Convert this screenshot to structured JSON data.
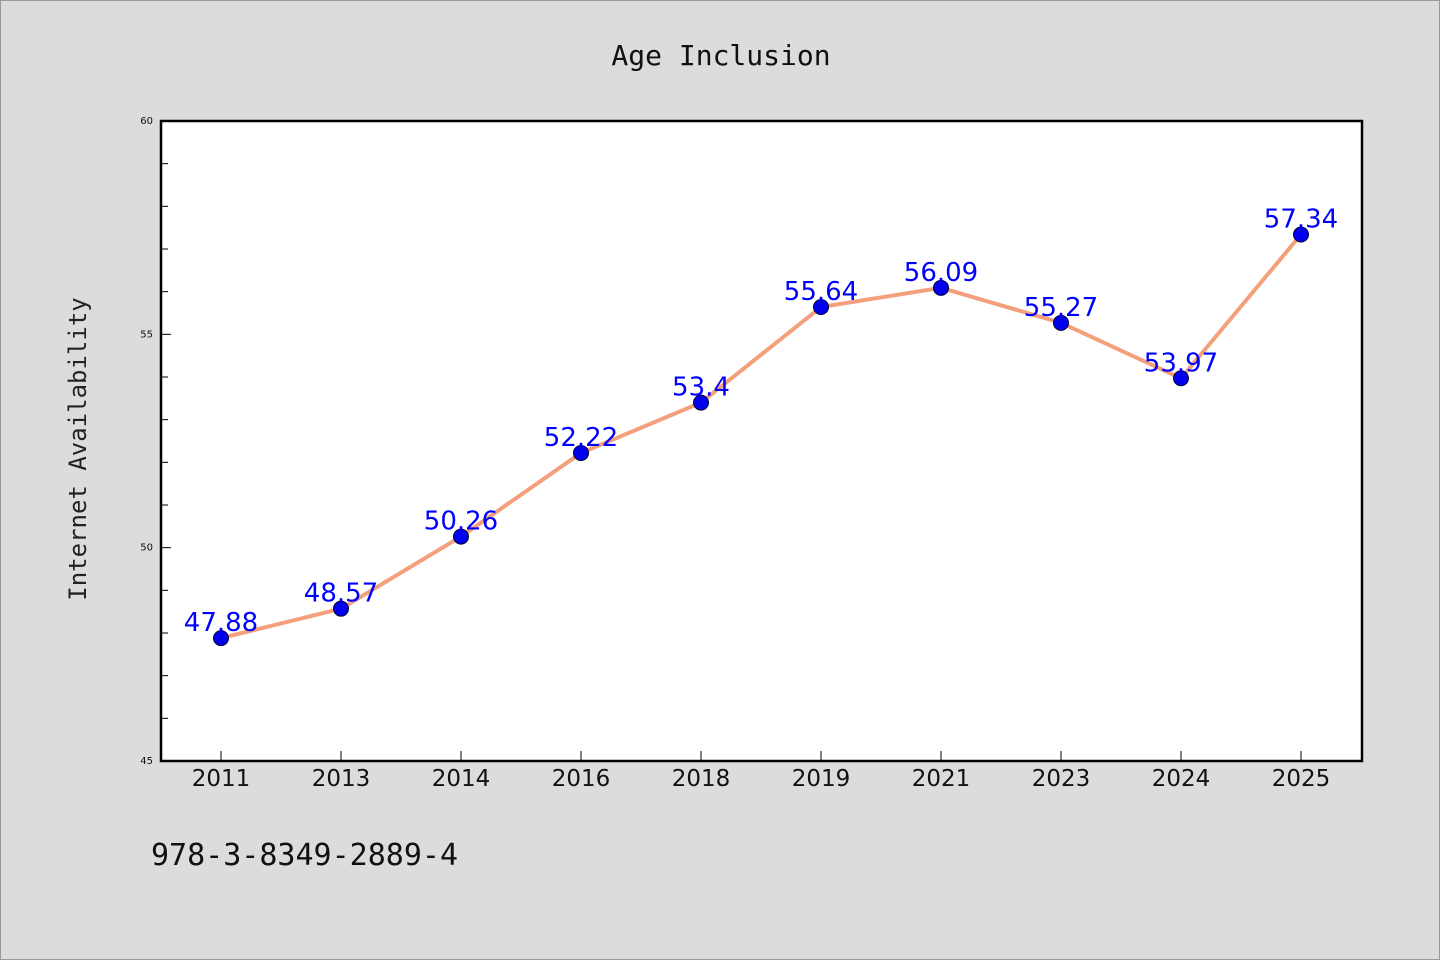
{
  "chart_data": {
    "type": "line",
    "title": "Age Inclusion",
    "xlabel": "",
    "ylabel": "Internet Availability",
    "categories": [
      "2011",
      "2013",
      "2014",
      "2016",
      "2018",
      "2019",
      "2021",
      "2023",
      "2024",
      "2025"
    ],
    "series": [
      {
        "values": [
          47.88,
          48.57,
          50.26,
          52.22,
          53.4,
          55.64,
          56.09,
          55.27,
          53.97,
          57.34
        ],
        "line_color": "#f4a07c",
        "marker_color": "#0000ee"
      }
    ],
    "data_labels": [
      "47.88",
      "48.57",
      "50.26",
      "52.22",
      "53.4",
      "55.64",
      "56.09",
      "55.27",
      "53.97",
      "57.34"
    ],
    "ylim": [
      45,
      60
    ],
    "yticks": [
      45,
      50,
      55,
      60
    ],
    "grid": false,
    "legend": "none"
  },
  "footer": {
    "text": "978-3-8349-2889-4"
  },
  "colors": {
    "background": "#dcdcdc",
    "plot_background": "#ffffff",
    "data_label": "#0000ff"
  }
}
